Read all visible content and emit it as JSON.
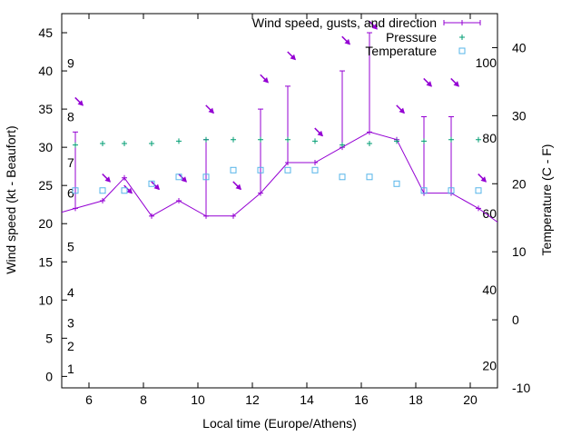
{
  "chart_data": {
    "type": "line",
    "title": "",
    "xlabel": "Local time (Europe/Athens)",
    "ylabel": "Wind speed (kt - Beaufort)",
    "y2label": "Temperature (C - F)",
    "xlim": [
      5.0,
      21.0
    ],
    "ylim": [
      -1.5,
      47.5
    ],
    "y2lim": [
      -10,
      45
    ],
    "x_ticks": [
      6,
      8,
      10,
      12,
      14,
      16,
      18,
      20
    ],
    "y_ticks": [
      0,
      5,
      10,
      15,
      20,
      25,
      30,
      35,
      40,
      45
    ],
    "y2_ticks": [
      -10,
      0,
      10,
      20,
      30,
      40
    ],
    "beaufort_labels": [
      {
        "label": "1",
        "y": 1
      },
      {
        "label": "2",
        "y": 4
      },
      {
        "label": "3",
        "y": 7
      },
      {
        "label": "4",
        "y": 11
      },
      {
        "label": "5",
        "y": 17
      },
      {
        "label": "6",
        "y": 24
      },
      {
        "label": "7",
        "y": 28
      },
      {
        "label": "8",
        "y": 34
      },
      {
        "label": "9",
        "y": 41
      }
    ],
    "fahrenheit_labels": [
      {
        "label": "20",
        "temp_c": -6.7
      },
      {
        "label": "40",
        "temp_c": 4.4
      },
      {
        "label": "60",
        "temp_c": 15.6
      },
      {
        "label": "80",
        "temp_c": 26.7
      },
      {
        "label": "100",
        "temp_c": 37.8
      }
    ],
    "legend": {
      "position": "top-right",
      "entries": [
        "Wind speed, gusts, and direction",
        "Pressure",
        "Temperature"
      ]
    },
    "colors": {
      "wind": "#9400d3",
      "pressure": "#009e73",
      "temperature": "#56b4e9",
      "axis": "#000000"
    },
    "series": [
      {
        "name": "Wind speed, gusts, and direction",
        "x": [
          5.0,
          5.5,
          6.5,
          7.3,
          8.3,
          9.3,
          10.3,
          11.3,
          12.3,
          13.3,
          14.3,
          15.3,
          16.3,
          17.3,
          18.3,
          19.3,
          20.3,
          21.0
        ],
        "wind": [
          21.5,
          22,
          23,
          26,
          21,
          23,
          21,
          21,
          24,
          28,
          28,
          30,
          32,
          31,
          24,
          24,
          22,
          20.2
        ],
        "gusts": [
          null,
          32,
          null,
          null,
          null,
          null,
          31,
          null,
          35,
          38,
          null,
          40,
          45,
          null,
          34,
          34,
          null,
          null
        ],
        "direction_deg": [
          null,
          315,
          315,
          315,
          315,
          315,
          315,
          315,
          315,
          315,
          315,
          315,
          315,
          315,
          315,
          315,
          315,
          null
        ],
        "arrow_y": [
          null,
          36,
          26,
          24.5,
          25,
          26,
          35,
          25,
          39,
          42,
          32,
          44,
          46,
          35,
          38.5,
          38.5,
          26,
          null
        ]
      },
      {
        "name": "Pressure",
        "x": [
          5.5,
          6.5,
          7.3,
          8.3,
          9.3,
          10.3,
          11.3,
          12.3,
          13.3,
          14.3,
          15.3,
          16.3,
          17.3,
          18.3,
          19.3,
          20.3
        ],
        "values": [
          30.3,
          30.5,
          30.5,
          30.5,
          30.8,
          31,
          31,
          31,
          31,
          30.8,
          30.3,
          30.5,
          30.8,
          30.8,
          31,
          31
        ]
      },
      {
        "name": "Temperature",
        "x": [
          5.5,
          6.5,
          7.3,
          8.3,
          9.3,
          10.3,
          11.3,
          12.3,
          13.3,
          14.3,
          15.3,
          16.3,
          17.3,
          18.3,
          19.3,
          20.3
        ],
        "values": [
          19,
          19,
          19,
          20,
          21,
          21,
          22,
          22,
          22,
          22,
          21,
          21,
          20,
          19,
          19,
          19
        ]
      }
    ]
  }
}
